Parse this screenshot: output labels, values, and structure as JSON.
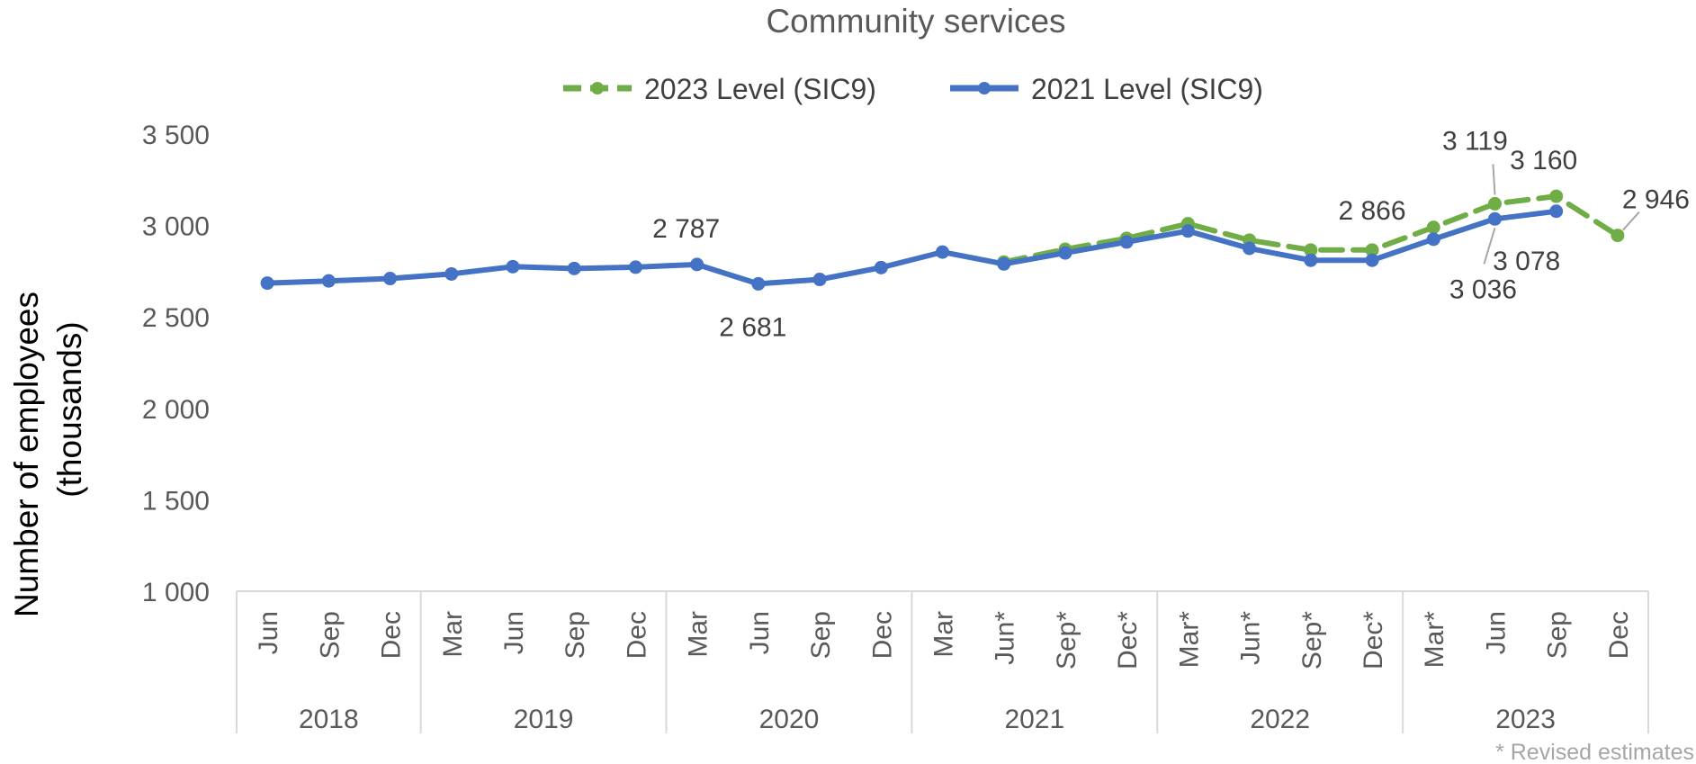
{
  "chart_data": {
    "type": "line",
    "title": "Community services",
    "ylabel_line1": "Number of employees",
    "ylabel_line2": "(thousands)",
    "xlabel": "",
    "ylim": [
      1000,
      3500
    ],
    "yticks": [
      1000,
      1500,
      2000,
      2500,
      3000,
      3500
    ],
    "ytick_labels": [
      "1 000",
      "1 500",
      "2 000",
      "2 500",
      "3 000",
      "3 500"
    ],
    "legend_position": "top-center",
    "grid": false,
    "categories": [
      "Jun",
      "Sep",
      "Dec",
      "Mar",
      "Jun",
      "Sep",
      "Dec",
      "Mar",
      "Jun",
      "Sep",
      "Dec",
      "Mar",
      "Jun*",
      "Sep*",
      "Dec*",
      "Mar*",
      "Jun*",
      "Sep*",
      "Dec*",
      "Mar*",
      "Jun",
      "Sep",
      "Dec"
    ],
    "year_groups": [
      {
        "label": "2018",
        "count": 3
      },
      {
        "label": "2019",
        "count": 4
      },
      {
        "label": "2020",
        "count": 4
      },
      {
        "label": "2021",
        "count": 4
      },
      {
        "label": "2022",
        "count": 4
      },
      {
        "label": "2023",
        "count": 4
      }
    ],
    "series": [
      {
        "name": "2023 Level (SIC9)",
        "color": "#70ad47",
        "dashed": true,
        "values": [
          null,
          null,
          null,
          null,
          null,
          null,
          null,
          null,
          null,
          null,
          null,
          null,
          2800,
          2870,
          2930,
          3010,
          2920,
          2866,
          2866,
          2990,
          3119,
          3160,
          2946
        ]
      },
      {
        "name": "2021 Level (SIC9)",
        "color": "#4472c4",
        "dashed": false,
        "values": [
          2685,
          2697,
          2710,
          2735,
          2775,
          2765,
          2772,
          2787,
          2681,
          2705,
          2770,
          2855,
          2790,
          2850,
          2910,
          2970,
          2875,
          2810,
          2810,
          2925,
          3036,
          3078,
          null
        ]
      }
    ],
    "data_labels": [
      {
        "series": 1,
        "index": 7,
        "text": "2 787"
      },
      {
        "series": 1,
        "index": 8,
        "text": "2 681"
      },
      {
        "series": 0,
        "index": 18,
        "text": "2 866"
      },
      {
        "series": 0,
        "index": 20,
        "text": "3 119"
      },
      {
        "series": 1,
        "index": 20,
        "text": "3 036"
      },
      {
        "series": 0,
        "index": 21,
        "text": "3 160"
      },
      {
        "series": 1,
        "index": 21,
        "text": "3 078"
      },
      {
        "series": 0,
        "index": 22,
        "text": "2 946"
      }
    ],
    "footnote": "* Revised estimates"
  }
}
